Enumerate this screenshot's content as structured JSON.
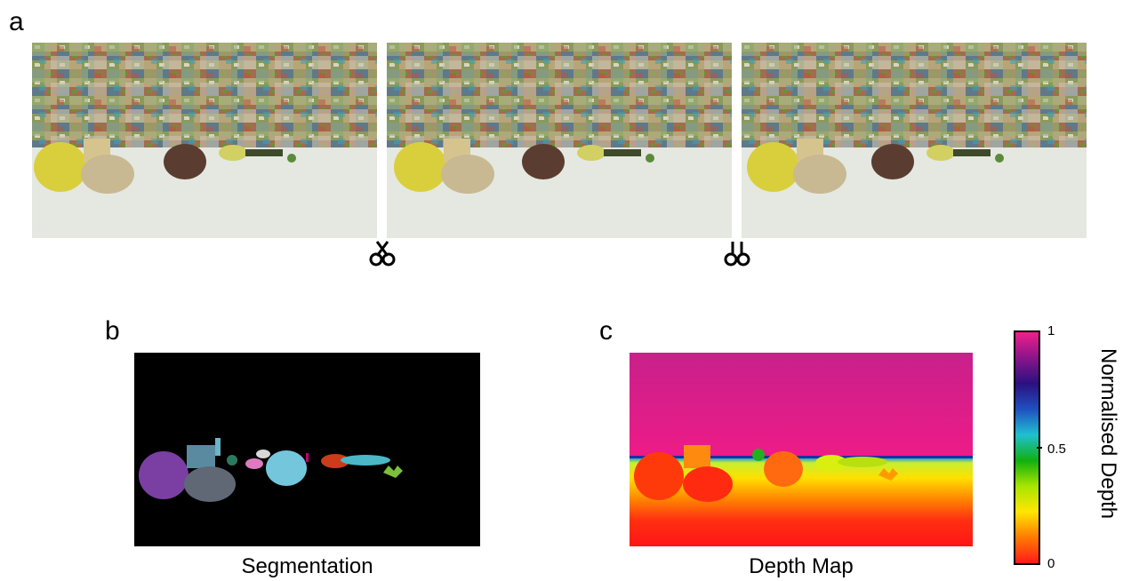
{
  "panels": {
    "a": {
      "letter": "a"
    },
    "b": {
      "letter": "b",
      "caption": "Segmentation"
    },
    "c": {
      "letter": "c",
      "caption": "Depth Map"
    }
  },
  "colorbar": {
    "title": "Normalised Depth",
    "ticks": [
      "1",
      "0.5",
      "0"
    ],
    "stops": [
      "#ff1a1a",
      "#ff7a00",
      "#ffe600",
      "#a8e600",
      "#10b010",
      "#20c0d0",
      "#2050c0",
      "#2b1080",
      "#8a148a",
      "#f0208a"
    ]
  },
  "icons": [
    "stereo-left-icon",
    "stereo-right-icon"
  ]
}
